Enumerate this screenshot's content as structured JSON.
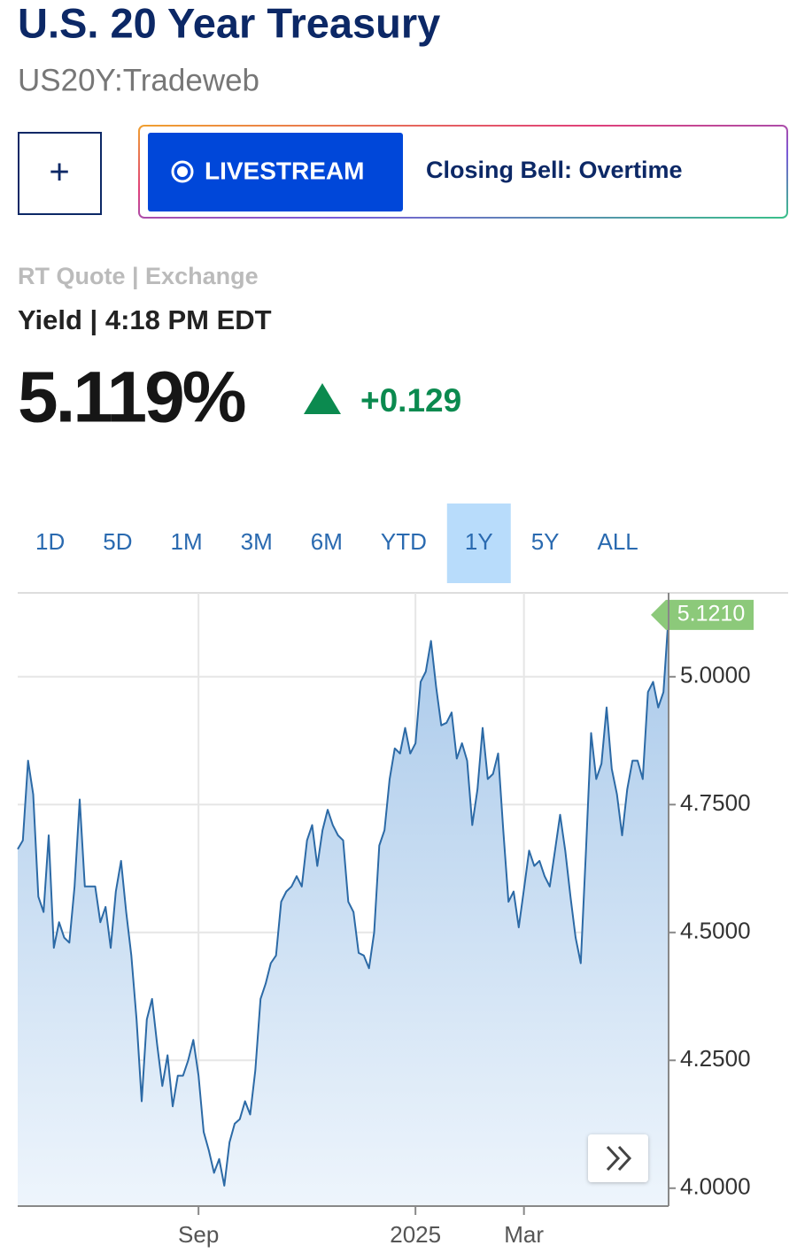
{
  "header": {
    "title": "U.S. 20 Year Treasury",
    "symbol": "US20Y:Tradeweb"
  },
  "add_button": "+",
  "livestream": {
    "badge": "LIVESTREAM",
    "show": "Closing Bell: Overtime"
  },
  "quote": {
    "source": "RT Quote | Exchange",
    "time": "Yield | 4:18 PM EDT",
    "value": "5.119%",
    "change": "+0.129"
  },
  "ranges": {
    "options": [
      "1D",
      "5D",
      "1M",
      "3M",
      "6M",
      "YTD",
      "1Y",
      "5Y",
      "ALL"
    ],
    "selected_index": 6
  },
  "chart_data": {
    "type": "line",
    "series": [
      {
        "color": "#2c6aa6",
        "values": [
          4.663,
          4.68,
          4.836,
          4.77,
          4.57,
          4.54,
          4.69,
          4.47,
          4.52,
          4.49,
          4.48,
          4.59,
          4.76,
          4.59,
          4.59,
          4.59,
          4.52,
          4.55,
          4.47,
          4.58,
          4.64,
          4.54,
          4.455,
          4.33,
          4.17,
          4.33,
          4.37,
          4.28,
          4.2,
          4.26,
          4.16,
          4.22,
          4.22,
          4.25,
          4.29,
          4.22,
          4.11,
          4.074,
          4.03,
          4.057,
          4.005,
          4.09,
          4.126,
          4.135,
          4.17,
          4.144,
          4.23,
          4.37,
          4.4,
          4.44,
          4.455,
          4.56,
          4.58,
          4.59,
          4.61,
          4.59,
          4.68,
          4.71,
          4.63,
          4.7,
          4.74,
          4.71,
          4.69,
          4.68,
          4.56,
          4.54,
          4.46,
          4.455,
          4.43,
          4.5,
          4.67,
          4.7,
          4.8,
          4.86,
          4.85,
          4.9,
          4.85,
          4.87,
          4.99,
          5.01,
          5.07,
          4.98,
          4.905,
          4.91,
          4.93,
          4.84,
          4.87,
          4.836,
          4.71,
          4.78,
          4.9,
          4.8,
          4.81,
          4.85,
          4.7,
          4.56,
          4.58,
          4.51,
          4.585,
          4.66,
          4.63,
          4.64,
          4.61,
          4.59,
          4.66,
          4.73,
          4.66,
          4.57,
          4.49,
          4.44,
          4.66,
          4.89,
          4.8,
          4.83,
          4.94,
          4.82,
          4.77,
          4.69,
          4.78,
          4.836,
          4.836,
          4.8,
          4.97,
          4.99,
          4.94,
          4.97,
          5.121
        ]
      }
    ],
    "last_label": "5.1210",
    "xlim": [
      0,
      126
    ],
    "xticks": [
      {
        "value": 35,
        "label": "Sep"
      },
      {
        "value": 77,
        "label": "2025"
      },
      {
        "value": 98,
        "label": "Mar"
      }
    ],
    "ylim": [
      3.965,
      5.164
    ],
    "yticks": [
      {
        "value": 4,
        "label": "4.0000"
      },
      {
        "value": 4.25,
        "label": "4.2500"
      },
      {
        "value": 4.5,
        "label": "4.5000"
      },
      {
        "value": 4.75,
        "label": "4.7500"
      },
      {
        "value": 5,
        "label": "5.0000"
      }
    ],
    "grid": true
  }
}
